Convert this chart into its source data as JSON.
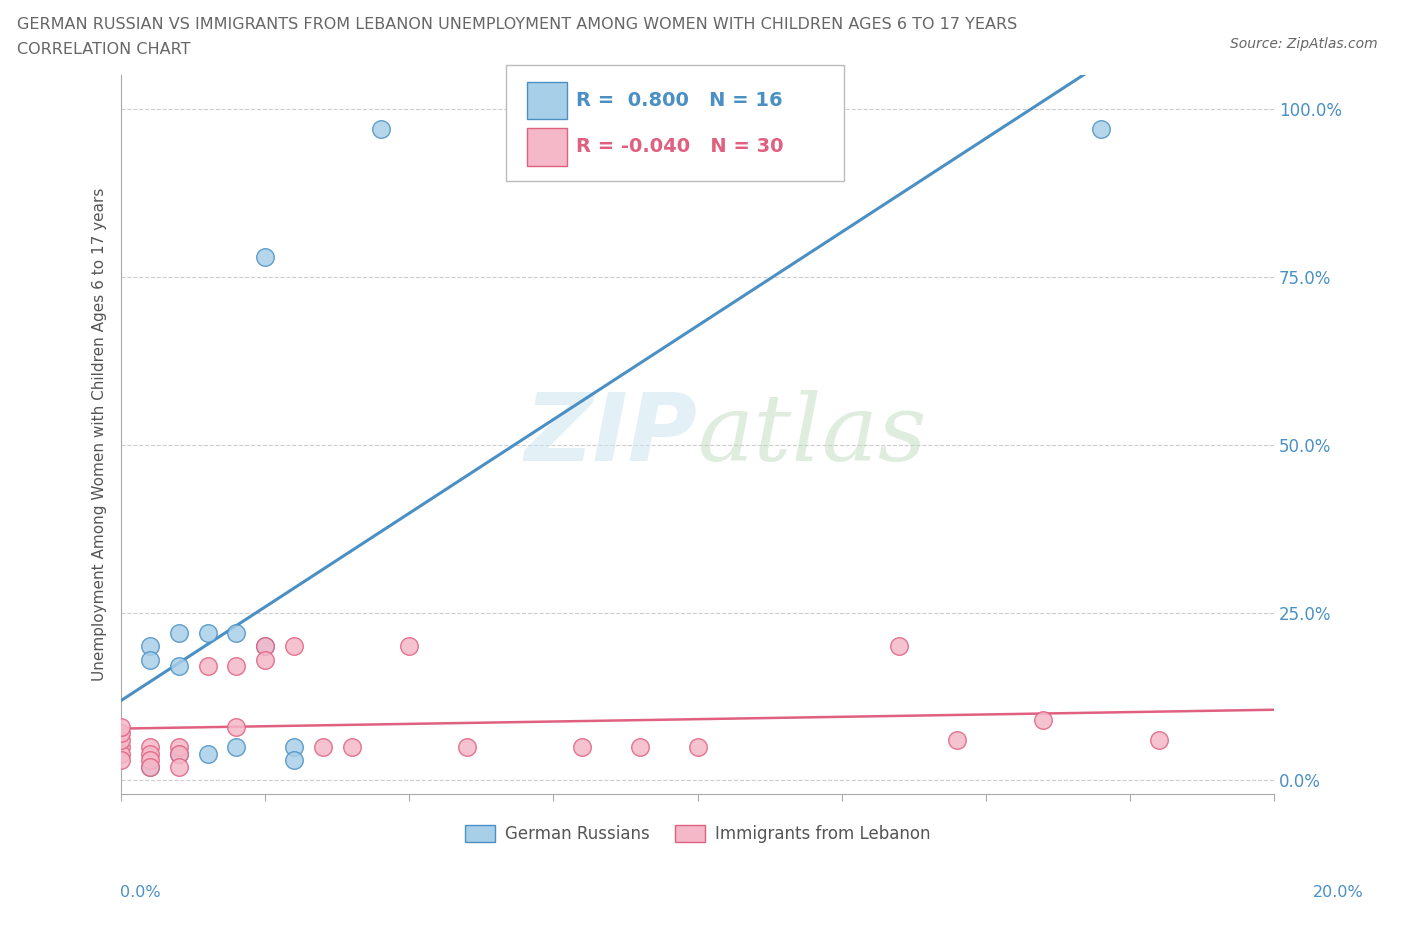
{
  "title_line1": "GERMAN RUSSIAN VS IMMIGRANTS FROM LEBANON UNEMPLOYMENT AMONG WOMEN WITH CHILDREN AGES 6 TO 17 YEARS",
  "title_line2": "CORRELATION CHART",
  "source": "Source: ZipAtlas.com",
  "ylabel": "Unemployment Among Women with Children Ages 6 to 17 years",
  "ytick_labels": [
    "100.0%",
    "75.0%",
    "50.0%",
    "25.0%",
    "0.0%"
  ],
  "ytick_values": [
    1.0,
    0.75,
    0.5,
    0.25,
    0.0
  ],
  "xlim": [
    0.0,
    0.2
  ],
  "ylim": [
    -0.02,
    1.05
  ],
  "watermark_zip": "ZIP",
  "watermark_atlas": "atlas",
  "blue_color": "#a8cfe8",
  "blue_color_dark": "#4a90c4",
  "pink_color": "#f4b8c8",
  "pink_color_dark": "#e06080",
  "legend_blue_R": "0.800",
  "legend_blue_N": "16",
  "legend_pink_R": "-0.040",
  "legend_pink_N": "30",
  "legend_label_blue": "German Russians",
  "legend_label_pink": "Immigrants from Lebanon",
  "german_russians_x": [
    0.045,
    0.17,
    0.025,
    0.01,
    0.005,
    0.005,
    0.01,
    0.015,
    0.02,
    0.025,
    0.03,
    0.02,
    0.015,
    0.01,
    0.005,
    0.03
  ],
  "german_russians_y": [
    0.97,
    0.97,
    0.78,
    0.22,
    0.2,
    0.18,
    0.17,
    0.22,
    0.22,
    0.2,
    0.05,
    0.05,
    0.04,
    0.04,
    0.02,
    0.03
  ],
  "lebanon_x": [
    0.0,
    0.0,
    0.0,
    0.0,
    0.0,
    0.005,
    0.005,
    0.005,
    0.01,
    0.01,
    0.015,
    0.02,
    0.025,
    0.025,
    0.03,
    0.035,
    0.04,
    0.05,
    0.06,
    0.08,
    0.09,
    0.1,
    0.135,
    0.145,
    0.16,
    0.18,
    0.0,
    0.005,
    0.01,
    0.02
  ],
  "lebanon_y": [
    0.05,
    0.04,
    0.03,
    0.06,
    0.07,
    0.05,
    0.04,
    0.03,
    0.05,
    0.04,
    0.17,
    0.17,
    0.2,
    0.18,
    0.2,
    0.05,
    0.05,
    0.2,
    0.05,
    0.05,
    0.05,
    0.05,
    0.2,
    0.06,
    0.09,
    0.06,
    0.08,
    0.02,
    0.02,
    0.08
  ],
  "background_color": "#ffffff",
  "grid_color": "#c8c8c8",
  "title_color": "#666666",
  "tick_color": "#4a90c4",
  "axis_color": "#aaaaaa",
  "xtick_positions": [
    0.0,
    0.025,
    0.05,
    0.075,
    0.1,
    0.125,
    0.15,
    0.175,
    0.2
  ]
}
